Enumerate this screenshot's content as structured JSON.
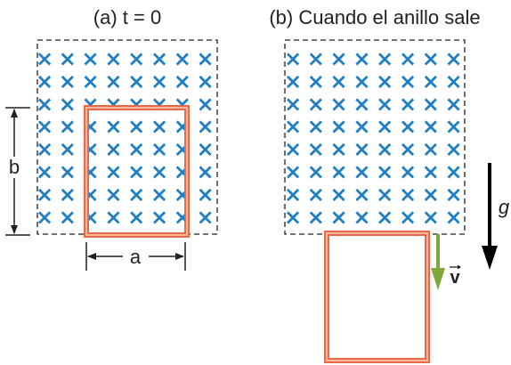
{
  "panel_a": {
    "title": "(a) t = 0",
    "width_label": "a",
    "height_label": "b"
  },
  "panel_b": {
    "title": "(b) Cuando el anillo sale",
    "velocity_label": "v",
    "gravity_label": "g"
  },
  "field": {
    "symbol": "×",
    "rows": 8,
    "columns": 8,
    "color": "#1f7fc2"
  },
  "colors": {
    "loop_outer": "#e8694a",
    "loop_inner": "#f6b79f",
    "velocity_arrow": "#7ea93a",
    "gravity_arrow": "#000000",
    "region_border": "#231f20"
  }
}
